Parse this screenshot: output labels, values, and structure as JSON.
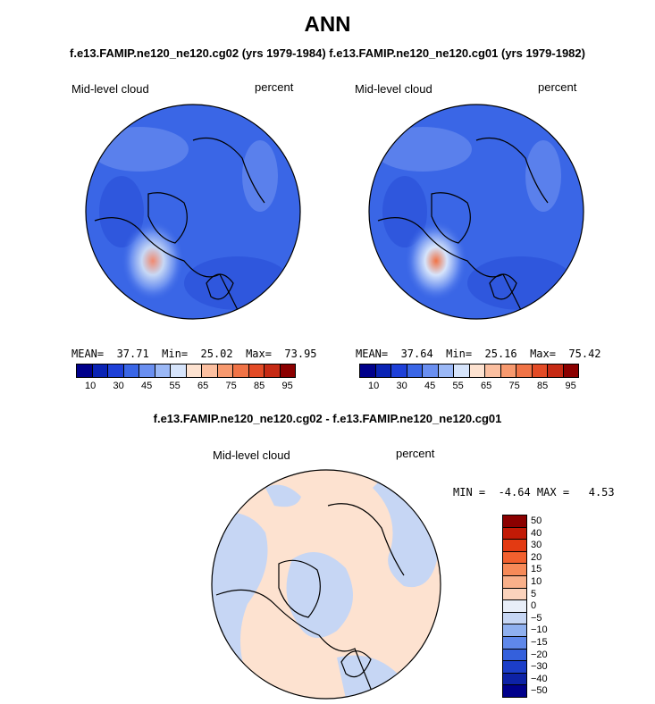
{
  "header": {
    "title": "ANN",
    "subtitle": "f.e13.FAMIP.ne120_ne120.cg02 (yrs 1979-1984) f.e13.FAMIP.ne120_ne120.cg01 (yrs 1979-1982)"
  },
  "panel_left": {
    "variable": "Mid-level cloud",
    "units": "percent",
    "stats": "MEAN=  37.71  Min=  25.02  Max=  73.95"
  },
  "panel_right": {
    "variable": "Mid-level cloud",
    "units": "percent",
    "stats": "MEAN=  37.64  Min=  25.16  Max=  75.42"
  },
  "colorbar_abs": {
    "colors": [
      "#00008b",
      "#0a23b4",
      "#1e40d8",
      "#3a66e6",
      "#6a8ff0",
      "#9bb8f6",
      "#d6e4fb",
      "#fde2d0",
      "#fbbfa0",
      "#f7996e",
      "#f07346",
      "#e34b26",
      "#c62a14",
      "#8b0000"
    ],
    "labels": [
      "10",
      "30",
      "45",
      "55",
      "65",
      "75",
      "85",
      "95"
    ]
  },
  "diff": {
    "title": "f.e13.FAMIP.ne120_ne120.cg02 - f.e13.FAMIP.ne120_ne120.cg01",
    "variable": "Mid-level cloud",
    "units": "percent",
    "stats": "MIN =  -4.64 MAX =   4.53"
  },
  "colorbar_diff": {
    "colors": [
      "#8b0000",
      "#c21a06",
      "#e33a12",
      "#f2602e",
      "#f78a58",
      "#f9b08a",
      "#fbd3bc",
      "#e8eef8",
      "#c6d6f4",
      "#8fb0ef",
      "#5f88ea",
      "#3460dc",
      "#1c3ec8",
      "#0d22a6",
      "#00008b"
    ],
    "labels": [
      "50",
      "40",
      "30",
      "20",
      "15",
      "10",
      "5",
      "0",
      "−5",
      "−10",
      "−15",
      "−20",
      "−30",
      "−40",
      "−50"
    ]
  }
}
